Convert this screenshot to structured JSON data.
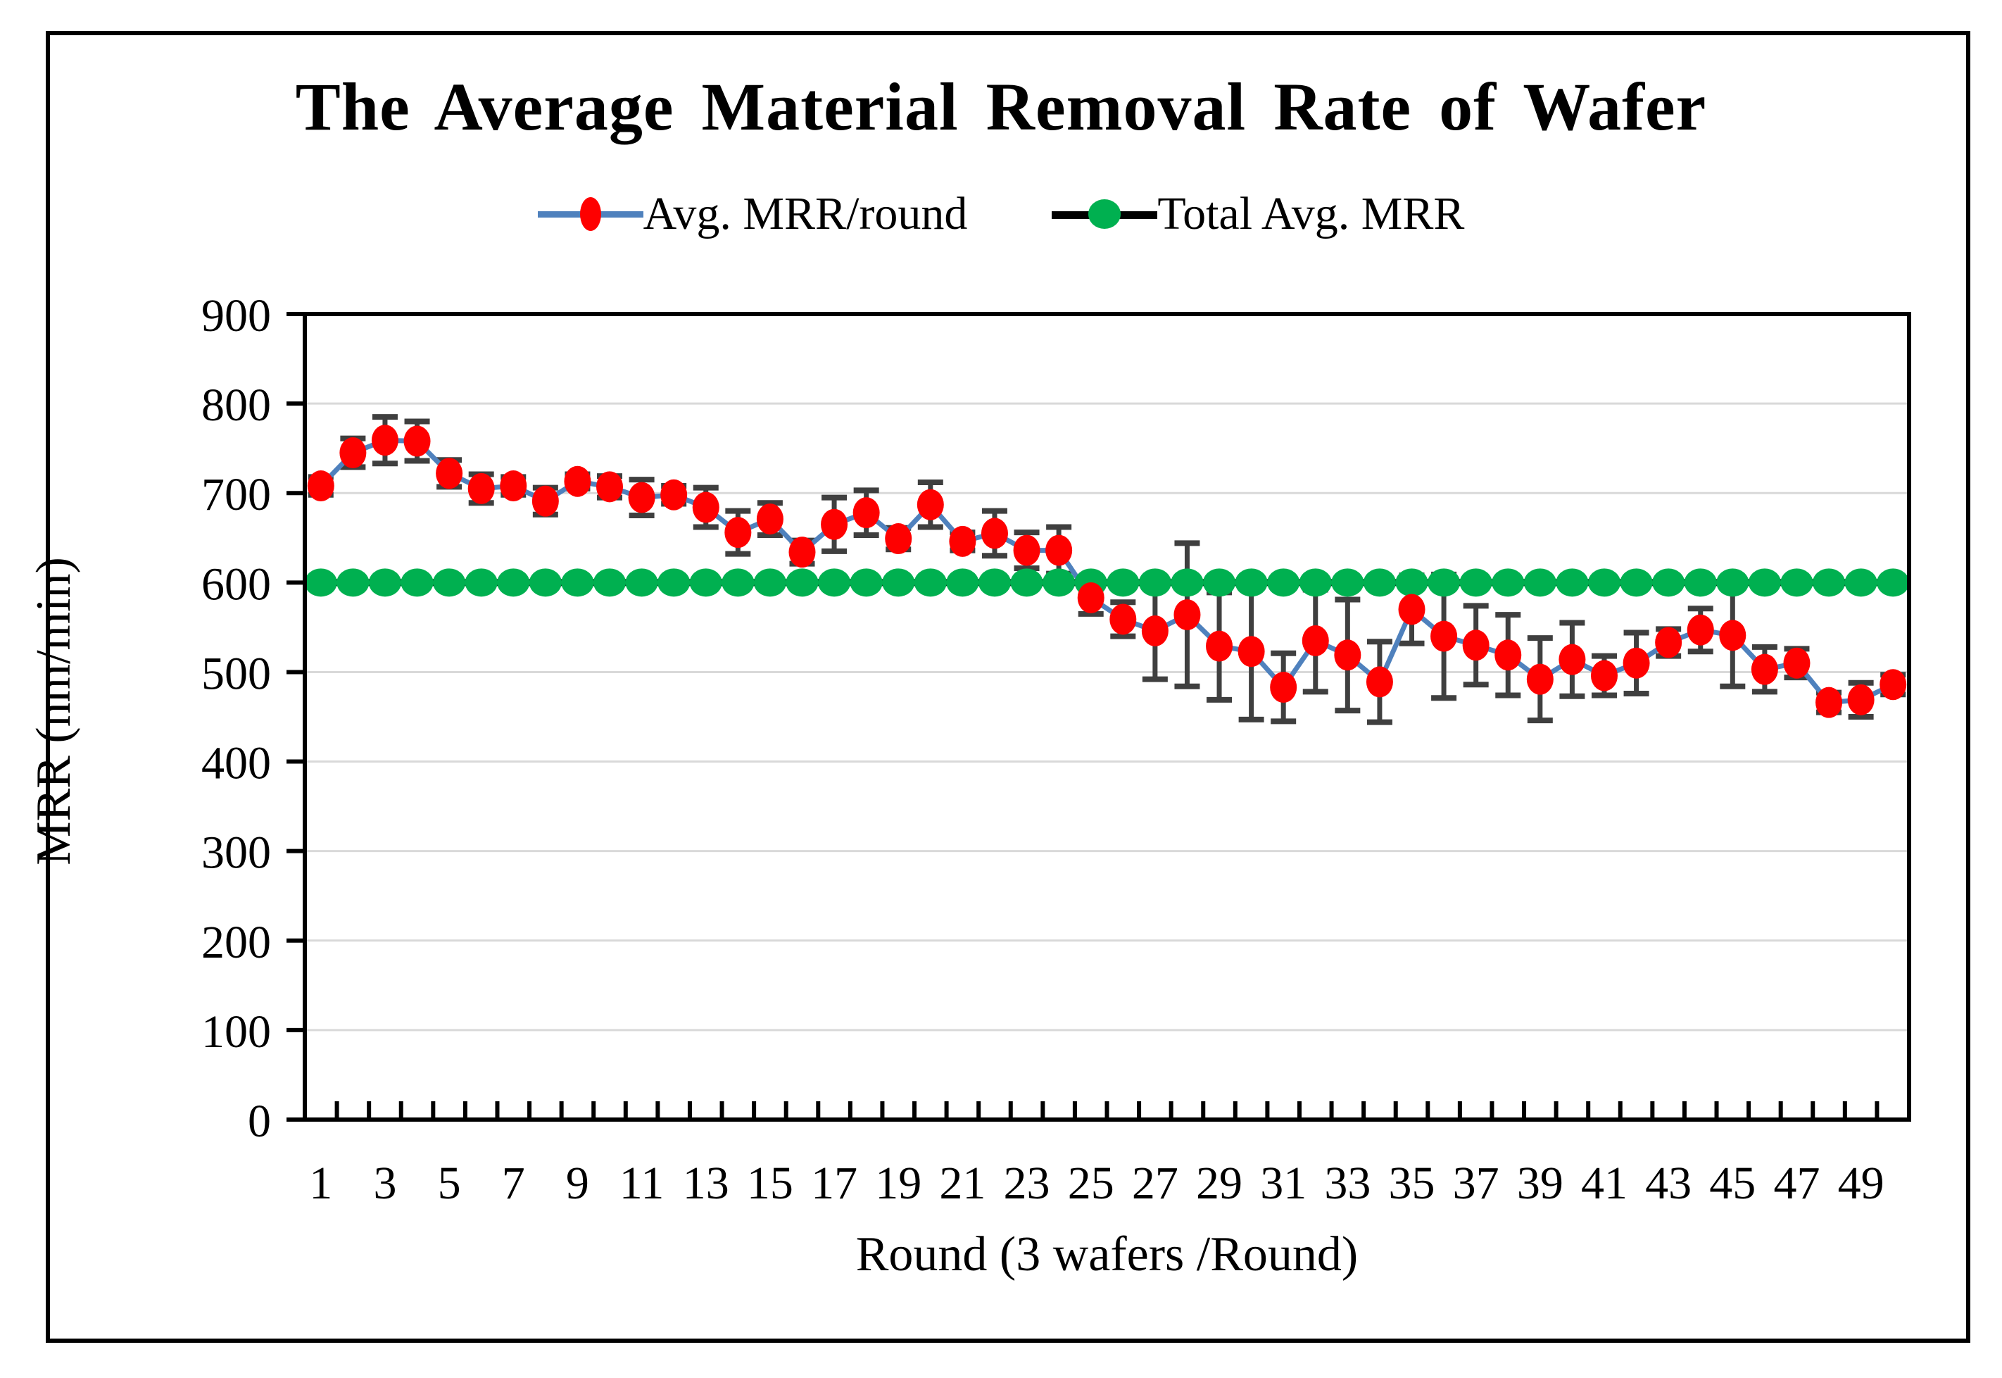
{
  "figure": {
    "title": "The Average Material Removal Rate of Wafer",
    "x_axis_title": "Round (3 wafers /Round)",
    "y_axis_title": "MRR (nm/min)"
  },
  "legend": {
    "items": [
      {
        "label": "Avg. MRR/round",
        "marker_color": "#FE0000",
        "line_color": "#4F81BD"
      },
      {
        "label": "Total Avg. MRR",
        "marker_color": "#00B050",
        "line_color": "#000000"
      }
    ]
  },
  "colors": {
    "avg_marker": "#FE0000",
    "avg_line": "#4F81BD",
    "total_marker": "#00B050",
    "total_line": "#000000",
    "error_bar": "#3F3F3F",
    "gridline": "#D9D9D9",
    "axis": "#000000"
  },
  "chart_data": {
    "type": "line",
    "title": "The Average Material Removal Rate of Wafer",
    "xlabel": "Round (3 wafers /Round)",
    "ylabel": "MRR (nm/min)",
    "ylim": [
      0,
      900
    ],
    "ytick_step": 100,
    "ytick_labels": [
      "0",
      "100",
      "200",
      "300",
      "400",
      "500",
      "600",
      "700",
      "800",
      "900"
    ],
    "xtick_labels": [
      "1",
      "3",
      "5",
      "7",
      "9",
      "11",
      "13",
      "15",
      "17",
      "19",
      "21",
      "23",
      "25",
      "27",
      "29",
      "31",
      "33",
      "35",
      "37",
      "39",
      "41",
      "43",
      "45",
      "47",
      "49"
    ],
    "grid": true,
    "legend_position": "top",
    "x": [
      1,
      2,
      3,
      4,
      5,
      6,
      7,
      8,
      9,
      10,
      11,
      12,
      13,
      14,
      15,
      16,
      17,
      18,
      19,
      20,
      21,
      22,
      23,
      24,
      25,
      26,
      27,
      28,
      29,
      30,
      31,
      32,
      33,
      34,
      35,
      36,
      37,
      38,
      39,
      40,
      41,
      42,
      43,
      44,
      45,
      46,
      47,
      48,
      49,
      50
    ],
    "series": [
      {
        "name": "Avg. MRR/round",
        "line_color": "#4F81BD",
        "marker_color": "#FE0000",
        "values": [
          708,
          745,
          759,
          758,
          722,
          705,
          708,
          691,
          713,
          707,
          695,
          698,
          684,
          656,
          671,
          634,
          665,
          678,
          649,
          687,
          646,
          655,
          636,
          636,
          583,
          559,
          546,
          564,
          529,
          523,
          483,
          535,
          519,
          489,
          570,
          540,
          530,
          519,
          492,
          514,
          496,
          510,
          533,
          547,
          541,
          503,
          510,
          466,
          469,
          486
        ],
        "error": [
          10,
          16,
          26,
          22,
          15,
          16,
          10,
          15,
          8,
          12,
          20,
          10,
          22,
          24,
          18,
          13,
          30,
          25,
          12,
          25,
          10,
          25,
          20,
          26,
          18,
          19,
          54,
          80,
          60,
          76,
          38,
          57,
          62,
          45,
          38,
          69,
          44,
          45,
          46,
          41,
          22,
          34,
          15,
          24,
          57,
          25,
          16,
          11,
          19,
          11
        ]
      },
      {
        "name": "Total Avg. MRR",
        "line_color": "#000000",
        "marker_color": "#00B050",
        "constant_value": 600,
        "values": [
          600,
          600,
          600,
          600,
          600,
          600,
          600,
          600,
          600,
          600,
          600,
          600,
          600,
          600,
          600,
          600,
          600,
          600,
          600,
          600,
          600,
          600,
          600,
          600,
          600,
          600,
          600,
          600,
          600,
          600,
          600,
          600,
          600,
          600,
          600,
          600,
          600,
          600,
          600,
          600,
          600,
          600,
          600,
          600,
          600,
          600,
          600,
          600,
          600,
          600
        ]
      }
    ]
  }
}
